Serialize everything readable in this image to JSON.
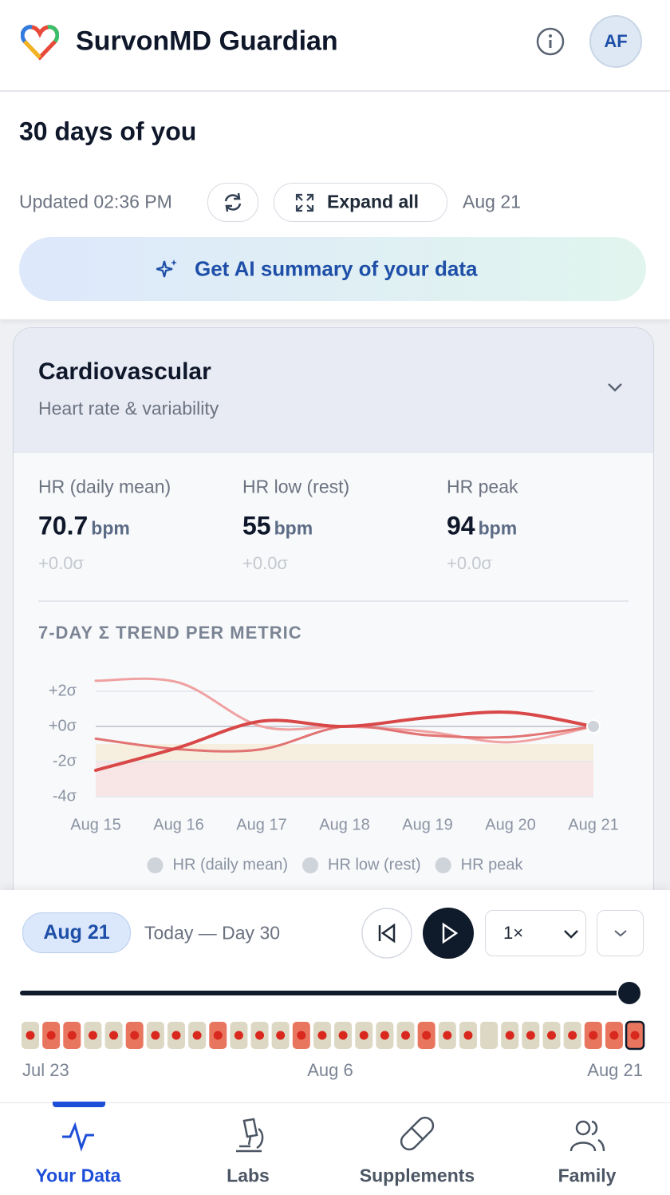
{
  "header": {
    "title": "SurvonMD Guardian",
    "avatar": "AF"
  },
  "summary": {
    "title": "30 days of you",
    "updated": "Updated 02:36 PM",
    "expand": "Expand all",
    "date": "Aug 21",
    "ai_button": "Get AI summary of your data"
  },
  "card": {
    "title": "Cardiovascular",
    "subtitle": "Heart rate & variability",
    "metrics": [
      {
        "label": "HR (daily mean)",
        "value": 70.7,
        "unit": "bpm",
        "delta": "+0.0σ"
      },
      {
        "label": "HR low (rest)",
        "value": 55,
        "unit": "bpm",
        "delta": "+0.0σ"
      },
      {
        "label": "HR peak",
        "value": 94,
        "unit": "bpm",
        "delta": "+0.0σ"
      }
    ]
  },
  "chart_data": {
    "type": "line",
    "title": "7-DAY Σ TREND PER METRIC",
    "categories": [
      "Aug 15",
      "Aug 16",
      "Aug 17",
      "Aug 18",
      "Aug 19",
      "Aug 20",
      "Aug 21"
    ],
    "series": [
      {
        "name": "HR (daily mean)",
        "color": "#d94848",
        "values": [
          -2.5,
          -1.2,
          0.3,
          0,
          0.5,
          0.8,
          0
        ]
      },
      {
        "name": "HR low (rest)",
        "color": "#e27373",
        "values": [
          -0.7,
          -1.3,
          -1.3,
          0,
          -0.5,
          -0.6,
          0
        ]
      },
      {
        "name": "HR peak",
        "color": "#f0a2a2",
        "values": [
          2.6,
          2.5,
          0,
          0,
          -0.3,
          -0.9,
          0
        ]
      }
    ],
    "ylim": [
      -4,
      2.6
    ],
    "yticks": [
      {
        "value": 2,
        "label": "+2σ"
      },
      {
        "value": 0,
        "label": "+0σ"
      },
      {
        "value": -2,
        "label": "-2σ"
      },
      {
        "value": -4,
        "label": "-4σ"
      }
    ],
    "grid": true,
    "bands": [
      {
        "from": -1,
        "to": -2,
        "color": "#f6efdf"
      },
      {
        "from": -2,
        "to": -4,
        "color": "#f8e6e6"
      }
    ],
    "marker_color": "#cfd3da"
  },
  "timeline": {
    "date": "Aug 21",
    "caption": "Today — Day 30",
    "speed": "1×",
    "dot_color": "#d9281e",
    "selected": 29,
    "days": [
      {
        "color": "#ddd8c3",
        "dot": true
      },
      {
        "color": "#e8765f",
        "dot": true
      },
      {
        "color": "#e8765f",
        "dot": true
      },
      {
        "color": "#ddd8c3",
        "dot": true
      },
      {
        "color": "#ddd8c3",
        "dot": true
      },
      {
        "color": "#e8765f",
        "dot": true
      },
      {
        "color": "#ddd8c3",
        "dot": true
      },
      {
        "color": "#ddd8c3",
        "dot": true
      },
      {
        "color": "#ddd8c3",
        "dot": true
      },
      {
        "color": "#e8765f",
        "dot": true
      },
      {
        "color": "#ddd8c3",
        "dot": true
      },
      {
        "color": "#ddd8c3",
        "dot": true
      },
      {
        "color": "#ddd8c3",
        "dot": true
      },
      {
        "color": "#e8765f",
        "dot": true
      },
      {
        "color": "#ddd8c3",
        "dot": true
      },
      {
        "color": "#ddd8c3",
        "dot": true
      },
      {
        "color": "#ddd8c3",
        "dot": true
      },
      {
        "color": "#ddd8c3",
        "dot": true
      },
      {
        "color": "#ddd8c3",
        "dot": true
      },
      {
        "color": "#e8765f",
        "dot": true
      },
      {
        "color": "#ddd8c3",
        "dot": true
      },
      {
        "color": "#ddd8c3",
        "dot": true
      },
      {
        "color": "#ddd8c3",
        "dot": false
      },
      {
        "color": "#ddd8c3",
        "dot": true
      },
      {
        "color": "#ddd8c3",
        "dot": true
      },
      {
        "color": "#ddd8c3",
        "dot": true
      },
      {
        "color": "#ddd8c3",
        "dot": true
      },
      {
        "color": "#e8765f",
        "dot": true
      },
      {
        "color": "#e8765f",
        "dot": true
      },
      {
        "color": "#e8765f",
        "dot": true
      }
    ],
    "axis_labels": [
      "Jul 23",
      "Aug 6",
      "Aug 21"
    ]
  },
  "nav": [
    {
      "label": "Your Data"
    },
    {
      "label": "Labs"
    },
    {
      "label": "Supplements"
    },
    {
      "label": "Family"
    }
  ]
}
